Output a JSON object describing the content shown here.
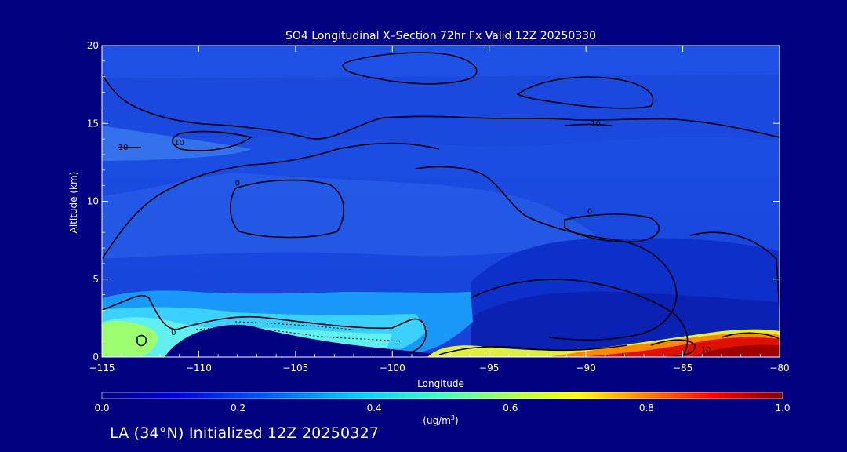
{
  "chart_data": {
    "type": "heatmap",
    "title": "SO4 Longitudinal X–Section 72hr  Fx Valid 12Z 20250330",
    "xlabel": "Longitude",
    "ylabel": "Altitude (km)",
    "xlim": [
      -115,
      -80
    ],
    "ylim": [
      0,
      20
    ],
    "x_ticks": [
      -115,
      -110,
      -105,
      -100,
      -95,
      -90,
      -85,
      -80
    ],
    "x_tick_labels": [
      "−115",
      "−110",
      "−105",
      "−100",
      "−95",
      "−90",
      "−85",
      "−80"
    ],
    "y_ticks": [
      0,
      5,
      10,
      15,
      20
    ],
    "y_tick_labels": [
      "0",
      "5",
      "10",
      "15",
      "20"
    ],
    "colorbar": {
      "min": 0.0,
      "max": 1.0,
      "ticks": [
        0.0,
        0.2,
        0.4,
        0.6,
        0.8,
        1.0
      ],
      "tick_labels": [
        "0.0",
        "0.2",
        "0.4",
        "0.6",
        "0.8",
        "1.0"
      ],
      "label_main": "(ug/m",
      "label_sup": "3",
      "label_end": ")",
      "colors": [
        "#000080",
        "#0000ff",
        "#00a0ff",
        "#00ffff",
        "#80ff80",
        "#ffff00",
        "#ff8000",
        "#ff0000",
        "#800000"
      ]
    },
    "grid": false,
    "contour_labels": [
      {
        "x": -113.9,
        "y": 13.3,
        "text": "10"
      },
      {
        "x": -111.0,
        "y": 13.6,
        "text": "10"
      },
      {
        "x": -108.0,
        "y": 11.0,
        "text": "0"
      },
      {
        "x": -89.5,
        "y": 14.8,
        "text": "10"
      },
      {
        "x": -89.8,
        "y": 9.2,
        "text": "0"
      },
      {
        "x": -111.3,
        "y": 1.4,
        "text": "0"
      },
      {
        "x": -83.8,
        "y": 0.3,
        "text": "10"
      }
    ]
  },
  "footer": {
    "text": "LA (34°N) Initialized 12Z 20250327"
  }
}
